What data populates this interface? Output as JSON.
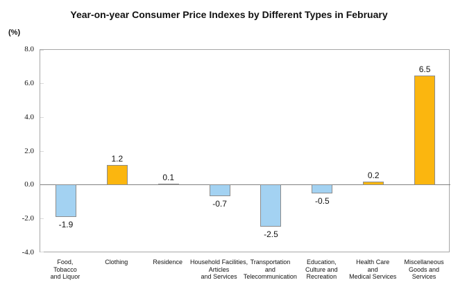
{
  "header": {
    "title": "Year-on-year Consumer Price Indexes by Different Types in February"
  },
  "y_axis": {
    "unit_label": "(%)"
  },
  "chart_data": {
    "type": "bar",
    "title": "Year-on-year Consumer Price Indexes by Different Types in February",
    "xlabel": "",
    "ylabel": "(%)",
    "ylim": [
      -4.0,
      8.0
    ],
    "y_ticks": [
      8.0,
      6.0,
      4.0,
      2.0,
      0.0,
      -2.0,
      -4.0
    ],
    "grid": false,
    "legend": false,
    "categories": [
      "Food,\nTobacco\nand Liquor",
      "Clothing",
      "Residence",
      "Household Facilities,\nArticles\nand Services",
      "Transportation\nand\nTelecommunication",
      "Education,\nCulture and\nRecreation",
      "Health Care\nand\nMedical Services",
      "Miscellaneous\nGoods and\nServices"
    ],
    "values": [
      -1.9,
      1.2,
      0.1,
      -0.7,
      -2.5,
      -0.5,
      0.2,
      6.5
    ],
    "value_label_decimals": 1,
    "colors": {
      "positive_bar": "#FBB60F",
      "negative_bar": "#A3D2F2",
      "bar_border": "#8C8C8C",
      "axis_line": "#808080",
      "plot_border": "#A6A6A6",
      "tick_mark": "#D9D9D9"
    }
  }
}
